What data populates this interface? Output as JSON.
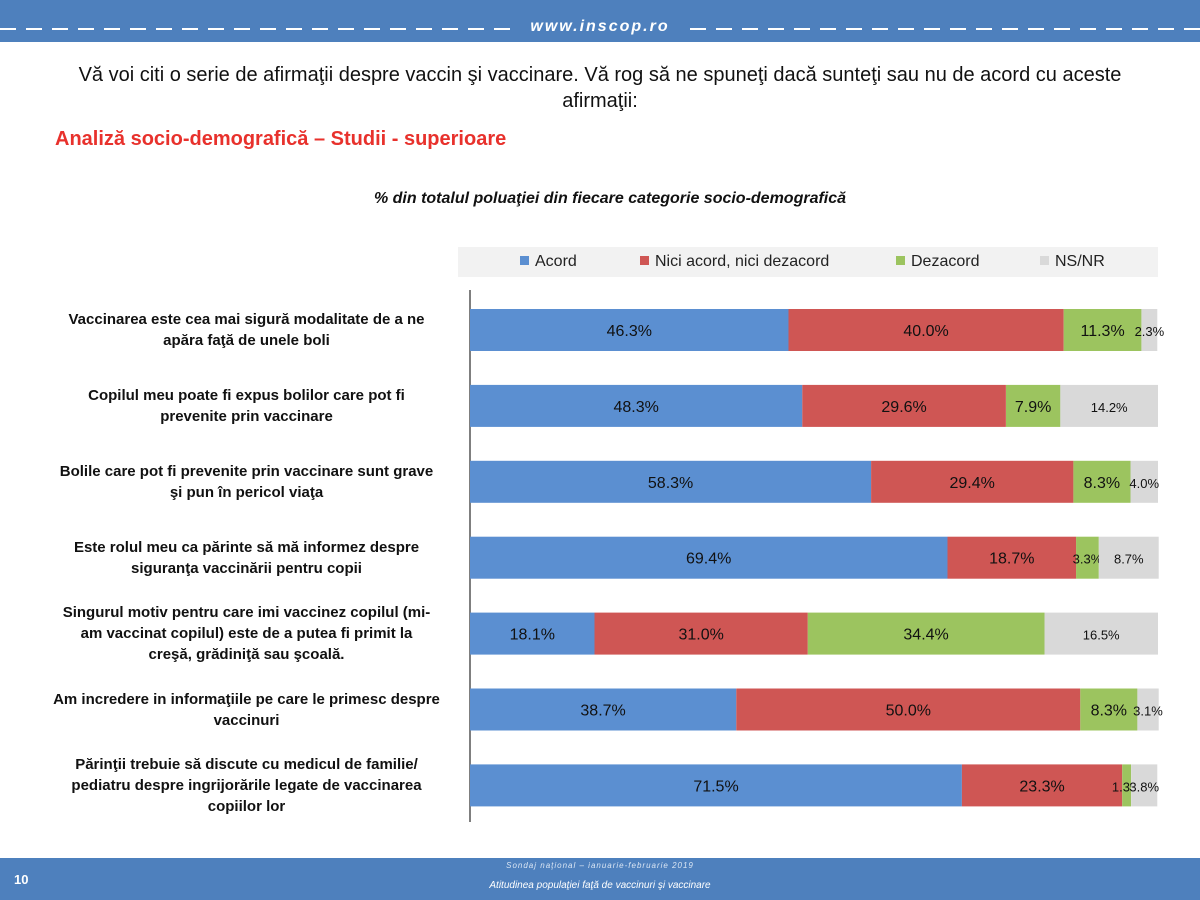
{
  "header": {
    "url": "www.inscop.ro"
  },
  "question": "Vă voi citi o serie de afirmaţii despre vaccin şi vaccinare. Vă rog să ne spuneţi dacă sunteţi sau nu de acord cu aceste afirmaţii:",
  "subtitle": "Analiză socio-demografică – Studii - superioare",
  "footer": {
    "page_number": "10",
    "survey": "Sondaj naţional – ianuarie-februarie 2019",
    "topic": "Atitudinea populaţiei faţă de vaccinuri şi vaccinare"
  },
  "colors": {
    "brand": "#4e80bd",
    "accent": "#e8312c"
  },
  "chart_data": {
    "type": "bar",
    "orientation": "horizontal",
    "stacked": true,
    "title": "% din totalul poluaţiei din fiecare categorie socio-demografică",
    "categories": [
      "Vaccinarea este cea mai sigură modalitate de a ne apăra faţă de unele boli",
      "Copilul meu poate fi  expus  bolilor care pot fi prevenite prin vaccinare",
      "Bolile care pot fi prevenite prin vaccinare sunt grave şi pun în pericol viaţa",
      "Este rolul meu ca părinte să mă informez despre siguranţa vaccinării pentru copii",
      "Singurul motiv pentru care imi vaccinez copilul (mi-am vaccinat copilul) este  de a putea fi primit  la creşă, grădiniţă sau şcoală.",
      "Am incredere in informaţiile pe care le primesc despre vaccinuri",
      "Părinţii trebuie să discute cu medicul de familie/ pediatru despre ingrijorările legate de vaccinarea copiilor lor"
    ],
    "category_lines": [
      [
        "Vaccinarea este cea mai sigură modalitate de a ne",
        "apăra faţă de unele boli"
      ],
      [
        "Copilul meu poate fi  expus  bolilor care pot fi",
        "prevenite prin vaccinare"
      ],
      [
        "Bolile care pot fi prevenite prin vaccinare sunt grave",
        "şi pun în pericol viaţa"
      ],
      [
        "Este rolul meu ca părinte să mă informez despre",
        "siguranţa vaccinării pentru copii"
      ],
      [
        "Singurul motiv pentru care imi vaccinez copilul (mi-",
        "am vaccinat copilul) este  de a putea fi primit  la",
        "creşă, grădiniţă sau şcoală."
      ],
      [
        "Am incredere in informaţiile pe care le primesc despre",
        "vaccinuri"
      ],
      [
        "Părinţii trebuie să discute cu medicul de familie/",
        "pediatru despre ingrijorările legate de vaccinarea",
        "copiilor lor"
      ]
    ],
    "series": [
      {
        "name": "Acord",
        "color": "#5b8fd1",
        "values": [
          46.3,
          48.3,
          58.3,
          69.4,
          18.1,
          38.7,
          71.5
        ]
      },
      {
        "name": "Nici acord, nici dezacord",
        "color": "#cf5654",
        "values": [
          40.0,
          29.6,
          29.4,
          18.7,
          31.0,
          50.0,
          23.3
        ]
      },
      {
        "name": "Dezacord",
        "color": "#9cc45f",
        "values": [
          11.3,
          7.9,
          8.3,
          3.3,
          34.4,
          8.3,
          1.3
        ]
      },
      {
        "name": "NS/NR",
        "color": "#d9d9d9",
        "values": [
          2.3,
          14.2,
          4.0,
          8.7,
          16.5,
          3.1,
          3.8
        ]
      }
    ],
    "data_labels": [
      [
        "46.3%",
        "40.0%",
        "11.3%",
        "2.3%"
      ],
      [
        "48.3%",
        "29.6%",
        "7.9%",
        "14.2%"
      ],
      [
        "58.3%",
        "29.4%",
        "8.3%",
        "4.0%"
      ],
      [
        "69.4%",
        "18.7%",
        "3.3%",
        "8.7%"
      ],
      [
        "18.1%",
        "31.0%",
        "34.4%",
        "16.5%"
      ],
      [
        "38.7%",
        "50.0%",
        "8.3%",
        "3.1%"
      ],
      [
        "71.5%",
        "23.3%",
        "1.3%",
        "3.8%"
      ]
    ],
    "xlim": [
      0,
      100
    ],
    "grid": false,
    "legend": "top"
  }
}
